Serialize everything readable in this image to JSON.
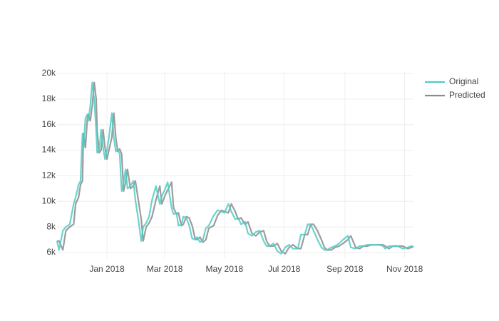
{
  "chart_data": {
    "type": "line",
    "x": [
      "2017-11-11",
      "2017-11-13",
      "2017-11-17",
      "2017-11-20",
      "2017-11-24",
      "2017-11-28",
      "2017-11-30",
      "2017-12-03",
      "2017-12-05",
      "2017-12-07",
      "2017-12-08",
      "2017-12-10",
      "2017-12-12",
      "2017-12-13",
      "2017-12-15",
      "2017-12-17",
      "2017-12-19",
      "2017-12-21",
      "2017-12-22",
      "2017-12-24",
      "2017-12-26",
      "2017-12-28",
      "2017-12-30",
      "2018-01-01",
      "2018-01-03",
      "2018-01-06",
      "2018-01-08",
      "2018-01-10",
      "2018-01-12",
      "2018-01-14",
      "2018-01-16",
      "2018-01-18",
      "2018-01-20",
      "2018-01-22",
      "2018-01-25",
      "2018-01-28",
      "2018-01-30",
      "2018-02-02",
      "2018-02-05",
      "2018-02-07",
      "2018-02-10",
      "2018-02-13",
      "2018-02-16",
      "2018-02-20",
      "2018-02-24",
      "2018-02-26",
      "2018-03-01",
      "2018-03-04",
      "2018-03-08",
      "2018-03-10",
      "2018-03-13",
      "2018-03-15",
      "2018-03-18",
      "2018-03-20",
      "2018-03-23",
      "2018-03-26",
      "2018-03-29",
      "2018-04-01",
      "2018-04-03",
      "2018-04-06",
      "2018-04-09",
      "2018-04-12",
      "2018-04-15",
      "2018-04-20",
      "2018-04-24",
      "2018-04-28",
      "2018-05-01",
      "2018-05-05",
      "2018-05-08",
      "2018-05-12",
      "2018-05-15",
      "2018-05-18",
      "2018-05-22",
      "2018-05-25",
      "2018-05-29",
      "2018-06-02",
      "2018-06-06",
      "2018-06-10",
      "2018-06-13",
      "2018-06-16",
      "2018-06-20",
      "2018-06-24",
      "2018-06-28",
      "2018-07-02",
      "2018-07-06",
      "2018-07-10",
      "2018-07-15",
      "2018-07-18",
      "2018-07-22",
      "2018-07-25",
      "2018-07-28",
      "2018-07-31",
      "2018-08-04",
      "2018-08-08",
      "2018-08-11",
      "2018-08-14",
      "2018-08-18",
      "2018-08-22",
      "2018-08-26",
      "2018-08-30",
      "2018-09-04",
      "2018-09-07",
      "2018-09-12",
      "2018-09-16",
      "2018-09-20",
      "2018-09-24",
      "2018-09-28",
      "2018-10-02",
      "2018-10-06",
      "2018-10-10",
      "2018-10-12",
      "2018-10-16",
      "2018-10-20",
      "2018-10-25",
      "2018-10-30",
      "2018-11-04",
      "2018-11-08",
      "2018-11-10"
    ],
    "series": [
      {
        "name": "Predicted",
        "color": "#8c8c8c",
        "values": [
          6900,
          6900,
          6200,
          7700,
          8000,
          8200,
          9800,
          10300,
          11300,
          11600,
          15300,
          14200,
          16500,
          16800,
          16300,
          17500,
          19300,
          18000,
          15500,
          13800,
          14000,
          15600,
          14200,
          13300,
          14000,
          15000,
          16900,
          15000,
          13900,
          14100,
          13700,
          10800,
          11500,
          12500,
          11000,
          11200,
          11600,
          10100,
          8600,
          6900,
          8000,
          8300,
          8800,
          10100,
          11200,
          9800,
          10400,
          10900,
          11500,
          9500,
          9000,
          9100,
          8100,
          8200,
          8800,
          8700,
          8100,
          7100,
          7000,
          7200,
          6800,
          7000,
          7900,
          8100,
          8900,
          9300,
          9200,
          9100,
          9800,
          9200,
          8600,
          8700,
          8200,
          8400,
          7500,
          7300,
          7600,
          7700,
          6900,
          6500,
          6500,
          6700,
          6100,
          5900,
          6400,
          6600,
          6300,
          6300,
          7400,
          7400,
          8200,
          8200,
          7700,
          7000,
          6400,
          6200,
          6200,
          6400,
          6500,
          6700,
          7000,
          7300,
          6400,
          6300,
          6500,
          6500,
          6600,
          6600,
          6600,
          6600,
          6500,
          6300,
          6500,
          6500,
          6500,
          6300,
          6400,
          6500
        ]
      },
      {
        "name": "Original",
        "color": "#4fcdc4",
        "values": [
          6900,
          6200,
          7700,
          8000,
          8200,
          9800,
          10300,
          11300,
          11600,
          15300,
          14200,
          16500,
          16800,
          16300,
          17500,
          19300,
          18000,
          15500,
          13800,
          14000,
          15600,
          14200,
          13300,
          14000,
          15000,
          16900,
          15000,
          13900,
          14100,
          13700,
          10800,
          11500,
          12500,
          11000,
          11200,
          11600,
          10100,
          8600,
          6900,
          8000,
          8300,
          8800,
          10100,
          11200,
          9800,
          10400,
          10900,
          11500,
          9500,
          9000,
          9100,
          8100,
          8200,
          8800,
          8700,
          8100,
          7100,
          7000,
          7200,
          6800,
          7000,
          7900,
          8100,
          8900,
          9300,
          9200,
          9100,
          9800,
          9200,
          8600,
          8700,
          8200,
          8400,
          7500,
          7300,
          7600,
          7700,
          6900,
          6500,
          6500,
          6700,
          6100,
          5900,
          6400,
          6600,
          6300,
          6300,
          7400,
          7400,
          8200,
          8200,
          7700,
          7000,
          6400,
          6200,
          6200,
          6400,
          6500,
          6700,
          7000,
          7300,
          6400,
          6300,
          6500,
          6500,
          6600,
          6600,
          6600,
          6600,
          6500,
          6300,
          6500,
          6500,
          6500,
          6300,
          6400,
          6500,
          6400
        ]
      }
    ],
    "xlim": [
      "2017-11-11",
      "2018-11-10"
    ],
    "xticks": [
      {
        "value": "2018-01-01",
        "label": "Jan 2018"
      },
      {
        "value": "2018-03-01",
        "label": "Mar 2018"
      },
      {
        "value": "2018-05-01",
        "label": "May 2018"
      },
      {
        "value": "2018-07-01",
        "label": "Jul 2018"
      },
      {
        "value": "2018-09-01",
        "label": "Sep 2018"
      },
      {
        "value": "2018-11-01",
        "label": "Nov 2018"
      }
    ],
    "ylim": [
      5550,
      20170
    ],
    "yticks": [
      {
        "value": 6000,
        "label": "6k"
      },
      {
        "value": 8000,
        "label": "8k"
      },
      {
        "value": 10000,
        "label": "10k"
      },
      {
        "value": 12000,
        "label": "12k"
      },
      {
        "value": 14000,
        "label": "14k"
      },
      {
        "value": 16000,
        "label": "16k"
      },
      {
        "value": 18000,
        "label": "18k"
      },
      {
        "value": 20000,
        "label": "20k"
      }
    ],
    "grid": true
  }
}
